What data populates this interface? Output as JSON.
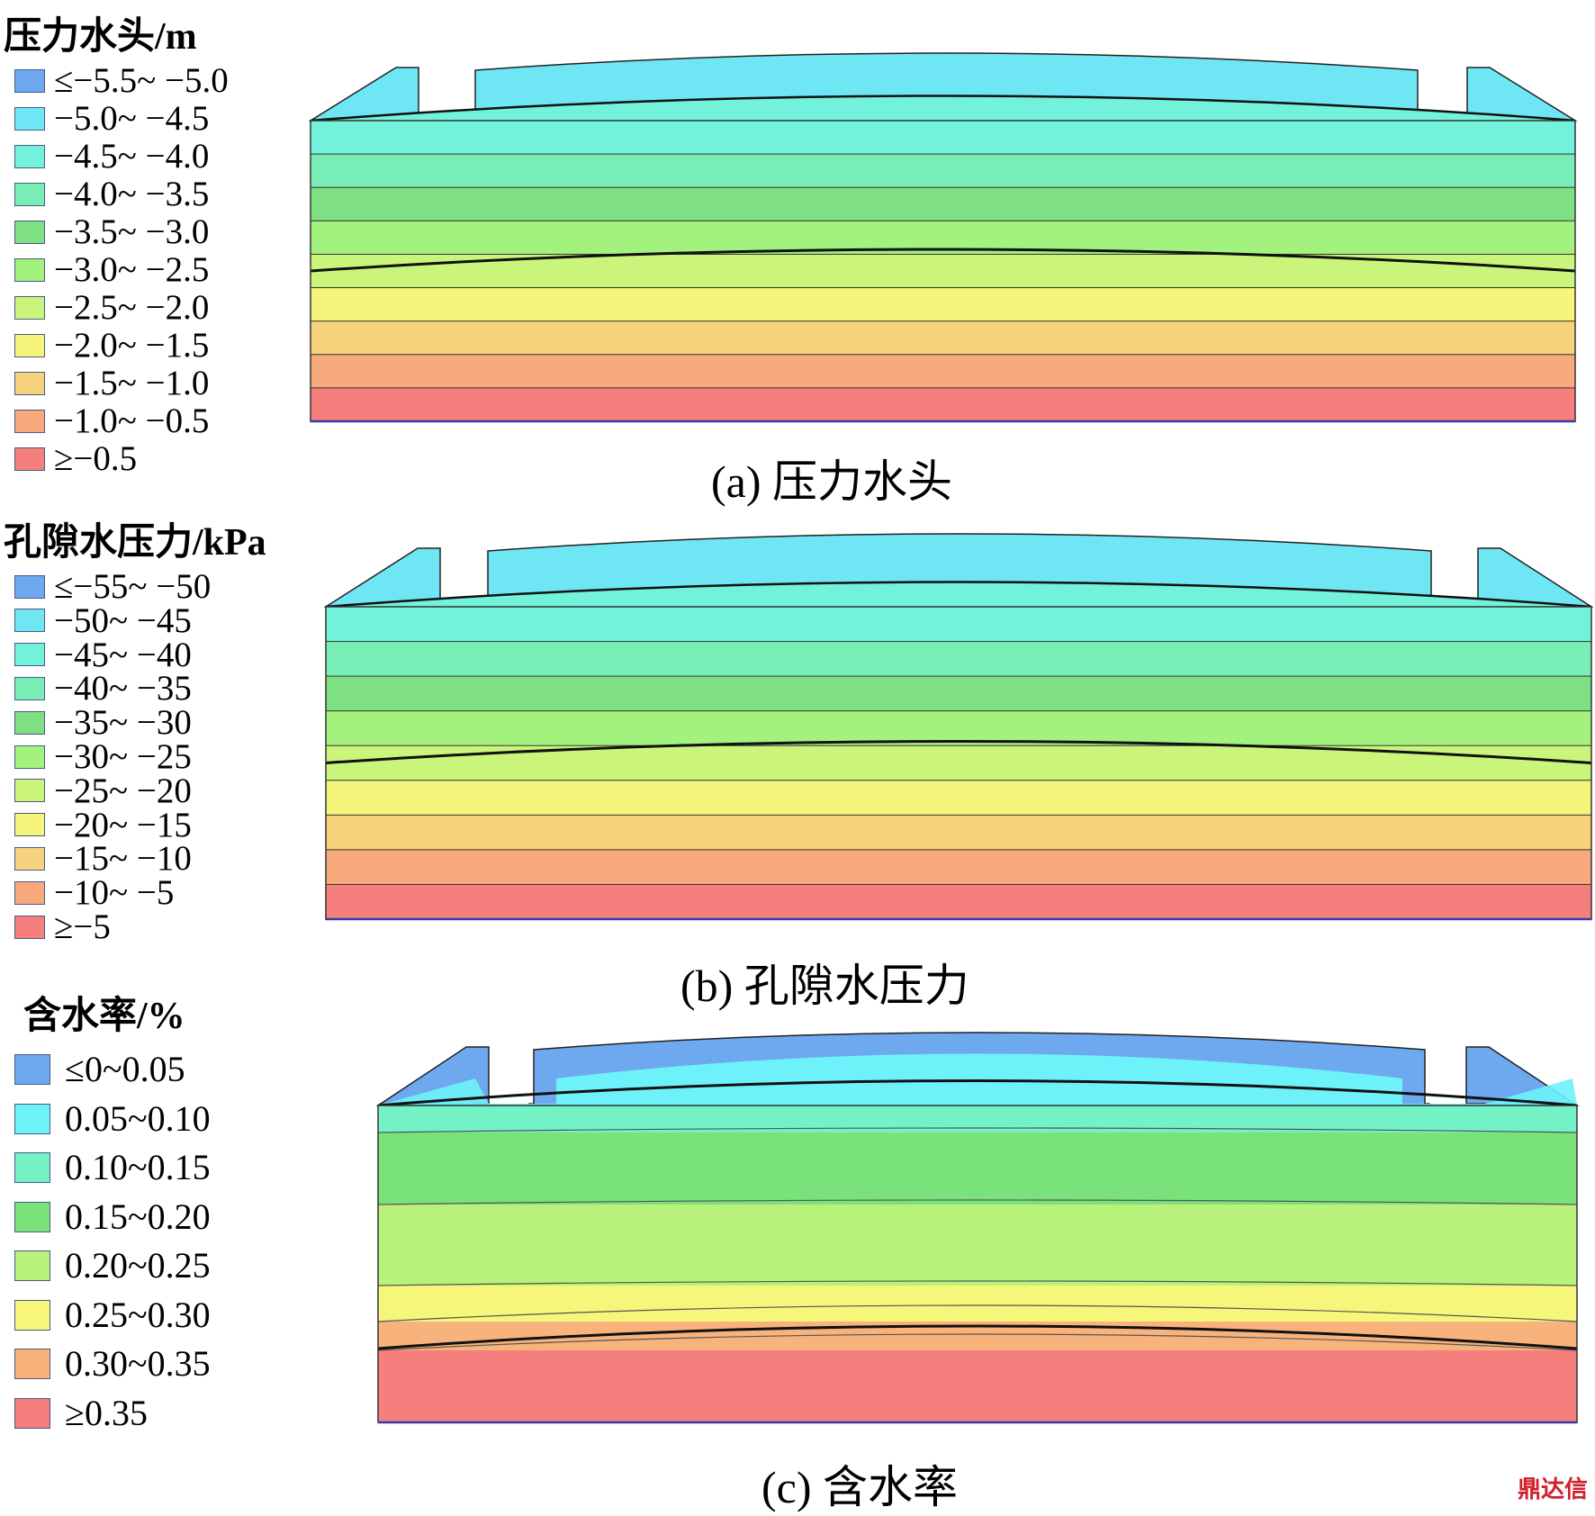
{
  "panels": [
    {
      "id": "a",
      "legend_title": "压力水头/m",
      "caption": "(a) 压力水头",
      "legend": [
        {
          "label": "≤−5.5~ −5.0",
          "color": "#6ea8ee"
        },
        {
          "label": "−5.0~ −4.5",
          "color": "#6fe6f4"
        },
        {
          "label": "−4.5~ −4.0",
          "color": "#72f2da"
        },
        {
          "label": "−4.0~ −3.5",
          "color": "#78eeb6"
        },
        {
          "label": "−3.5~ −3.0",
          "color": "#7ee082"
        },
        {
          "label": "−3.0~ −2.5",
          "color": "#a4f27e"
        },
        {
          "label": "−2.5~ −2.0",
          "color": "#cbf57a"
        },
        {
          "label": "−2.0~ −1.5",
          "color": "#f4f57a"
        },
        {
          "label": "−1.5~ −1.0",
          "color": "#f7d27c"
        },
        {
          "label": "−1.0~ −0.5",
          "color": "#f8aa7c"
        },
        {
          "label": "≥−0.5",
          "color": "#f47f7c"
        }
      ]
    },
    {
      "id": "b",
      "legend_title": "孔隙水压力/kPa",
      "caption": "(b) 孔隙水压力",
      "legend": [
        {
          "label": "≤−55~ −50",
          "color": "#6ea8ee"
        },
        {
          "label": "−50~ −45",
          "color": "#6fe6f4"
        },
        {
          "label": "−45~ −40",
          "color": "#72f2da"
        },
        {
          "label": "−40~ −35",
          "color": "#78eeb6"
        },
        {
          "label": "−35~ −30",
          "color": "#7ee082"
        },
        {
          "label": "−30~ −25",
          "color": "#a4f27e"
        },
        {
          "label": "−25~ −20",
          "color": "#cbf57a"
        },
        {
          "label": "−20~ −15",
          "color": "#f4f57a"
        },
        {
          "label": "−15~ −10",
          "color": "#f7d27c"
        },
        {
          "label": "−10~ −5",
          "color": "#f8aa7c"
        },
        {
          "label": "≥−5",
          "color": "#f47f7c"
        }
      ]
    },
    {
      "id": "c",
      "legend_title": "含水率/%",
      "caption": "(c) 含水率",
      "legend": [
        {
          "label": "≤0~0.05",
          "color": "#6ea8ee"
        },
        {
          "label": "0.05~0.10",
          "color": "#6ef2fa"
        },
        {
          "label": "0.10~0.15",
          "color": "#74f2c6"
        },
        {
          "label": "0.15~0.20",
          "color": "#7ae27a"
        },
        {
          "label": "0.20~0.25",
          "color": "#b8f27a"
        },
        {
          "label": "0.25~0.30",
          "color": "#f6f67a"
        },
        {
          "label": "0.30~0.35",
          "color": "#f8b27c"
        },
        {
          "label": "≥0.35",
          "color": "#f47f7c"
        }
      ]
    }
  ],
  "watermark": "鼎达信"
}
